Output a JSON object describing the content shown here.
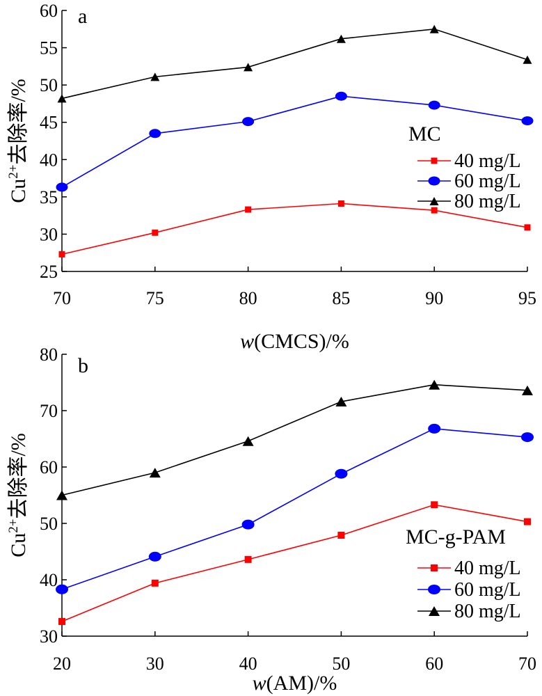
{
  "chart_data": [
    {
      "panel": "a",
      "type": "line",
      "xlabel": {
        "var": "w",
        "rest": "(CMCS)/%"
      },
      "ylabel": {
        "base": "Cu",
        "sup": "2+",
        "rest": "去除率/%"
      },
      "x": [
        70,
        75,
        80,
        85,
        90,
        95
      ],
      "xlim": [
        70,
        95
      ],
      "xticks": [
        70,
        75,
        80,
        85,
        90,
        95
      ],
      "ylim": [
        25,
        60
      ],
      "yticks": [
        25,
        30,
        35,
        40,
        45,
        50,
        55,
        60
      ],
      "legend_title": "MC",
      "legend_position": "right",
      "grid": false,
      "series": [
        {
          "name": "40 mg/L",
          "color": "#ff0000",
          "marker": "square",
          "values": [
            27.3,
            30.2,
            33.3,
            34.1,
            33.2,
            30.9
          ]
        },
        {
          "name": "60 mg/L",
          "color": "#0000ff",
          "marker": "circle",
          "values": [
            36.3,
            43.5,
            45.1,
            48.5,
            47.3,
            45.2
          ]
        },
        {
          "name": "80 mg/L",
          "color": "#000000",
          "marker": "triangle",
          "values": [
            48.2,
            51.1,
            52.4,
            56.2,
            57.5,
            53.4
          ]
        }
      ]
    },
    {
      "panel": "b",
      "type": "line",
      "xlabel": {
        "var": "w",
        "rest": "(AM)/%"
      },
      "ylabel": {
        "base": "Cu",
        "sup": "2+",
        "rest": "去除率/%"
      },
      "x": [
        20,
        30,
        40,
        50,
        60,
        70
      ],
      "xlim": [
        20,
        70
      ],
      "xticks": [
        20,
        30,
        40,
        50,
        60,
        70
      ],
      "ylim": [
        30,
        80
      ],
      "yticks": [
        30,
        40,
        50,
        60,
        70,
        80
      ],
      "legend_title": "MC-g-PAM",
      "legend_position": "bottom-right",
      "grid": false,
      "series": [
        {
          "name": "40 mg/L",
          "color": "#ff0000",
          "marker": "square",
          "values": [
            32.6,
            39.4,
            43.6,
            47.9,
            53.3,
            50.3
          ]
        },
        {
          "name": "60 mg/L",
          "color": "#0000ff",
          "marker": "circle",
          "values": [
            38.3,
            44.1,
            49.8,
            58.8,
            66.8,
            65.3
          ]
        },
        {
          "name": "80 mg/L",
          "color": "#000000",
          "marker": "triangle",
          "values": [
            55.0,
            59.0,
            64.6,
            71.6,
            74.6,
            73.6
          ]
        }
      ]
    }
  ]
}
